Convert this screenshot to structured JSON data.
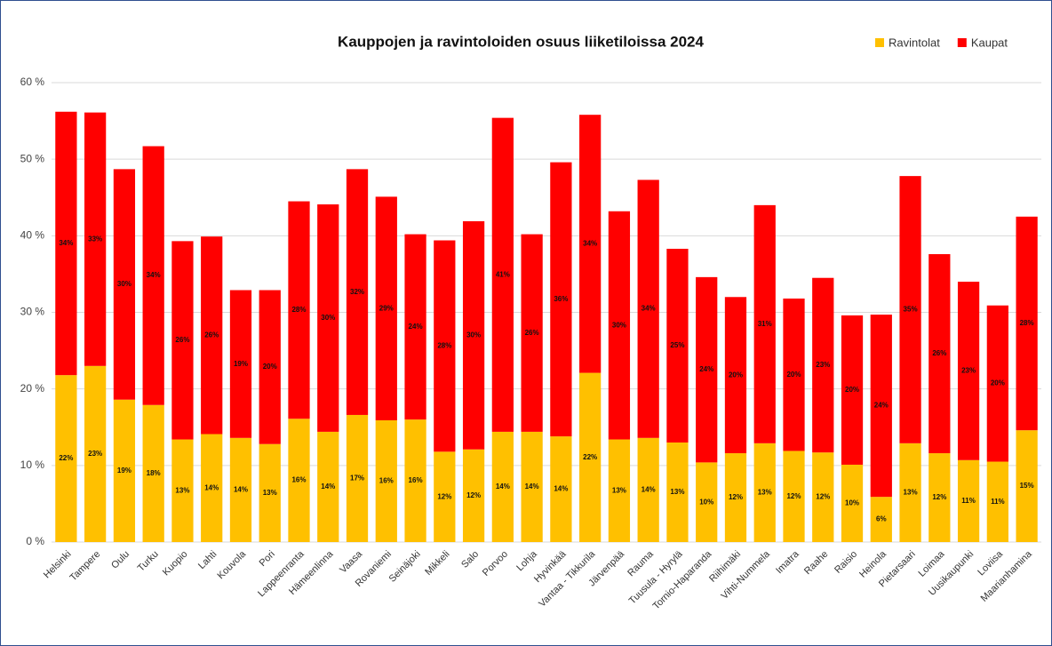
{
  "chart_data": {
    "type": "stacked_bar",
    "title": "Kauppojen ja ravintoloiden osuus liiketiloissa 2024",
    "categories": [
      "Helsinki",
      "Tampere",
      "Oulu",
      "Turku",
      "Kuopio",
      "Lahti",
      "Kouvola",
      "Pori",
      "Lappeenranta",
      "Hämeenlinna",
      "Vaasa",
      "Rovaniemi",
      "Seinäjoki",
      "Mikkeli",
      "Salo",
      "Porvoo",
      "Lohja",
      "Hyvinkää",
      "Vantaa - Tikkurila",
      "Järvenpää",
      "Rauma",
      "Tuusula - Hyrylä",
      "Tornio-Haparanda",
      "Riihimäki",
      "Vihti-Nummela",
      "Imatra",
      "Raahe",
      "Raisio",
      "Heinola",
      "Pietarsaari",
      "Loimaa",
      "Uusikaupunki",
      "Loviisa",
      "Maarianhamina"
    ],
    "series": [
      {
        "name": "Ravintolat",
        "color": "#ffc000",
        "values": [
          21.8,
          23.0,
          18.6,
          17.9,
          13.4,
          14.1,
          13.6,
          12.8,
          16.1,
          14.4,
          16.6,
          15.9,
          16.0,
          11.8,
          12.1,
          14.4,
          14.4,
          13.8,
          22.1,
          13.4,
          13.6,
          13.0,
          10.4,
          11.6,
          12.9,
          11.9,
          11.7,
          10.1,
          5.9,
          12.9,
          11.6,
          10.7,
          10.5,
          14.6
        ],
        "value_labels": [
          "22%",
          "23%",
          "19%",
          "18%",
          "13%",
          "14%",
          "14%",
          "13%",
          "16%",
          "14%",
          "17%",
          "16%",
          "16%",
          "12%",
          "12%",
          "14%",
          "14%",
          "14%",
          "22%",
          "13%",
          "14%",
          "13%",
          "10%",
          "12%",
          "13%",
          "12%",
          "12%",
          "10%",
          "6%",
          "13%",
          "12%",
          "11%",
          "11%",
          "15%"
        ]
      },
      {
        "name": "Kaupat",
        "color": "#ff0000",
        "values": [
          34.4,
          33.1,
          30.1,
          33.8,
          25.9,
          25.8,
          19.3,
          20.1,
          28.4,
          29.7,
          32.1,
          29.2,
          24.2,
          27.6,
          29.8,
          41.0,
          25.8,
          35.8,
          33.7,
          29.8,
          33.7,
          25.3,
          24.2,
          20.4,
          31.1,
          19.9,
          22.8,
          19.5,
          23.8,
          34.9,
          26.0,
          23.3,
          20.4,
          27.9
        ],
        "value_labels": [
          "34%",
          "33%",
          "30%",
          "34%",
          "26%",
          "26%",
          "19%",
          "20%",
          "28%",
          "30%",
          "32%",
          "29%",
          "24%",
          "28%",
          "30%",
          "41%",
          "26%",
          "36%",
          "34%",
          "30%",
          "34%",
          "25%",
          "24%",
          "20%",
          "31%",
          "20%",
          "23%",
          "20%",
          "24%",
          "35%",
          "26%",
          "23%",
          "20%",
          "28%"
        ]
      }
    ],
    "ylim": [
      0,
      60
    ],
    "yticks": [
      {
        "value": 0,
        "label": "0 %"
      },
      {
        "value": 10,
        "label": "10 %"
      },
      {
        "value": 20,
        "label": "20 %"
      },
      {
        "value": 30,
        "label": "30 %"
      },
      {
        "value": 40,
        "label": "40 %"
      },
      {
        "value": 50,
        "label": "50 %"
      },
      {
        "value": 60,
        "label": "60 %"
      }
    ],
    "grid": true,
    "legend": "top-right"
  }
}
